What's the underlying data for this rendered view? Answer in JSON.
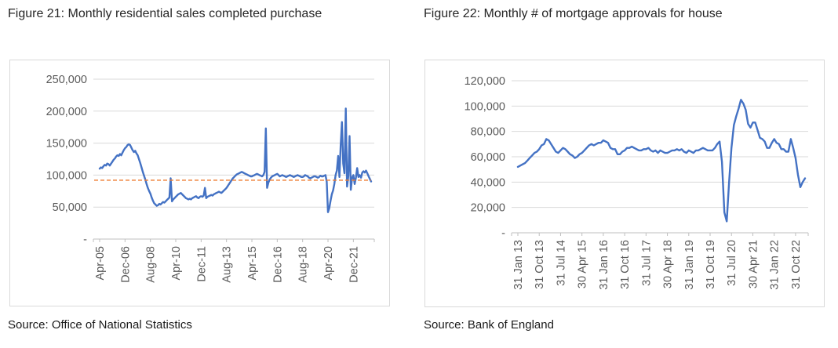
{
  "figures": [
    {
      "title": "Figure 21: Monthly residential sales completed purchase",
      "source": "Source: Office of National Statistics"
    },
    {
      "title": "Figure 22: Monthly # of mortgage approvals for house",
      "source": "Source: Bank of England"
    }
  ],
  "colors": {
    "line_blue": "#4472C4",
    "dashed_orange": "#ED7D31",
    "gridline": "#D9D9D9",
    "axis": "#BFBFBF",
    "tick_label": "#595959",
    "panel_border": "#D9D9D9"
  },
  "chart_data": [
    {
      "type": "line",
      "title": "Figure 21: Monthly residential sales completed purchase",
      "x_description": "months, Apr-2005 to Feb-2023",
      "x_tick_positions": [
        0,
        20,
        40,
        60,
        80,
        100,
        120,
        140,
        160,
        180,
        200
      ],
      "x_tick_labels": [
        "Apr-05",
        "Dec-06",
        "Aug-08",
        "Apr-10",
        "Dec-11",
        "Aug-13",
        "Apr-15",
        "Dec-16",
        "Aug-18",
        "Apr-20",
        "Dec-21"
      ],
      "y_ticks": [
        0,
        50000,
        100000,
        150000,
        200000,
        250000
      ],
      "y_tick_labels": [
        "-",
        "50,000",
        "100,000",
        "150,000",
        "200,000",
        "250,000"
      ],
      "ylim": [
        0,
        250000
      ],
      "grid": true,
      "legend": "none",
      "series": [
        {
          "name": "Monthly residential sales completed purchases",
          "color": "#4472C4",
          "style": "solid",
          "values": [
            110000,
            112000,
            111000,
            114000,
            116000,
            115000,
            118000,
            117000,
            115000,
            118000,
            121000,
            124000,
            126000,
            129000,
            131000,
            130000,
            133000,
            131000,
            135000,
            139000,
            142000,
            144000,
            147000,
            148000,
            147000,
            143000,
            139000,
            136000,
            138000,
            134000,
            131000,
            125000,
            119000,
            112000,
            105000,
            99000,
            93000,
            86000,
            80000,
            75000,
            71000,
            65000,
            60000,
            56000,
            54000,
            52000,
            53000,
            55000,
            54000,
            56000,
            58000,
            57000,
            59000,
            61000,
            63000,
            65000,
            95000,
            59000,
            62000,
            64000,
            66000,
            68000,
            70000,
            71000,
            72000,
            70000,
            68000,
            66000,
            64000,
            63000,
            62000,
            63000,
            62000,
            64000,
            65000,
            66000,
            67000,
            65000,
            64000,
            66000,
            67000,
            66000,
            68000,
            80000,
            64000,
            66000,
            67000,
            68000,
            69000,
            68000,
            70000,
            71000,
            72000,
            73000,
            74000,
            73000,
            72000,
            74000,
            76000,
            78000,
            80000,
            83000,
            86000,
            89000,
            92000,
            95000,
            97000,
            99000,
            101000,
            102000,
            103000,
            104000,
            105000,
            104000,
            103000,
            102000,
            101000,
            100000,
            99000,
            98000,
            98000,
            99000,
            100000,
            101000,
            102000,
            101000,
            100000,
            99000,
            98000,
            100000,
            105000,
            173000,
            80000,
            88000,
            93000,
            96000,
            98000,
            99000,
            100000,
            101000,
            102000,
            100000,
            98000,
            99000,
            100000,
            99000,
            98000,
            97000,
            98000,
            99000,
            100000,
            99000,
            98000,
            97000,
            98000,
            99000,
            100000,
            99000,
            98000,
            97000,
            97000,
            98000,
            100000,
            99000,
            98000,
            96000,
            95000,
            96000,
            97000,
            98000,
            98000,
            97000,
            96000,
            97000,
            99000,
            98000,
            98000,
            99000,
            100000,
            90000,
            42000,
            48000,
            60000,
            70000,
            76000,
            86000,
            100000,
            107000,
            130000,
            97000,
            147000,
            183000,
            118000,
            103000,
            204000,
            82000,
            98000,
            161000,
            77000,
            96000,
            100000,
            86000,
            96000,
            111000,
            97000,
            100000,
            96000,
            104000,
            106000,
            104000,
            107000,
            103000,
            98000,
            94000,
            90000
          ]
        },
        {
          "name": "Long-run average (dashed reference line)",
          "color": "#ED7D31",
          "style": "dashed",
          "constant": 92000
        }
      ]
    },
    {
      "type": "line",
      "title": "Figure 22: Monthly # of mortgage approvals for house",
      "x_description": "months, Jan-2013 to Feb-2023",
      "x_tick_positions": [
        0,
        9,
        18,
        27,
        36,
        45,
        54,
        63,
        72,
        81,
        90,
        99,
        108,
        117
      ],
      "x_tick_labels": [
        "31 Jan 13",
        "31 Oct 13",
        "31 Jul 14",
        "30 Apr 15",
        "31 Jan 16",
        "31 Oct 16",
        "31 Jul 17",
        "30 Apr 18",
        "31 Jan 19",
        "31 Oct 19",
        "31 Jul 20",
        "30 Apr 21",
        "31 Jan 22",
        "31 Oct 22"
      ],
      "y_ticks": [
        0,
        20000,
        40000,
        60000,
        80000,
        100000,
        120000
      ],
      "y_tick_labels": [
        "-",
        "20,000",
        "40,000",
        "60,000",
        "80,000",
        "100,000",
        "120,000"
      ],
      "ylim": [
        0,
        120000
      ],
      "grid": true,
      "legend": "none",
      "series": [
        {
          "name": "Monthly mortgage approvals for house purchase",
          "color": "#4472C4",
          "style": "solid",
          "values": [
            52000,
            53000,
            54000,
            55000,
            57000,
            59000,
            61000,
            63000,
            64000,
            66000,
            69000,
            70000,
            74000,
            73000,
            70000,
            67000,
            64000,
            63000,
            65000,
            67000,
            66000,
            64000,
            62000,
            61000,
            59000,
            60000,
            62000,
            63000,
            65000,
            67000,
            69000,
            70000,
            69000,
            70000,
            71000,
            71000,
            73000,
            72000,
            71000,
            67000,
            66000,
            66000,
            62000,
            62000,
            64000,
            65000,
            67000,
            67000,
            68000,
            67000,
            66000,
            65000,
            65000,
            66000,
            66000,
            67000,
            65000,
            64000,
            65000,
            63000,
            65000,
            64000,
            63000,
            63000,
            64000,
            65000,
            65000,
            66000,
            65000,
            66000,
            64000,
            63000,
            65000,
            64000,
            63000,
            65000,
            65000,
            66000,
            67000,
            66000,
            65000,
            65000,
            65000,
            67000,
            70000,
            72000,
            56000,
            16000,
            9000,
            40000,
            67000,
            85000,
            92000,
            98000,
            105000,
            102000,
            97000,
            86000,
            83000,
            87000,
            87000,
            81000,
            75000,
            74000,
            72000,
            67000,
            67000,
            71000,
            74000,
            71000,
            70000,
            66000,
            66000,
            64000,
            64000,
            74000,
            67000,
            59000,
            46000,
            36000,
            40000,
            43000
          ]
        }
      ]
    }
  ]
}
